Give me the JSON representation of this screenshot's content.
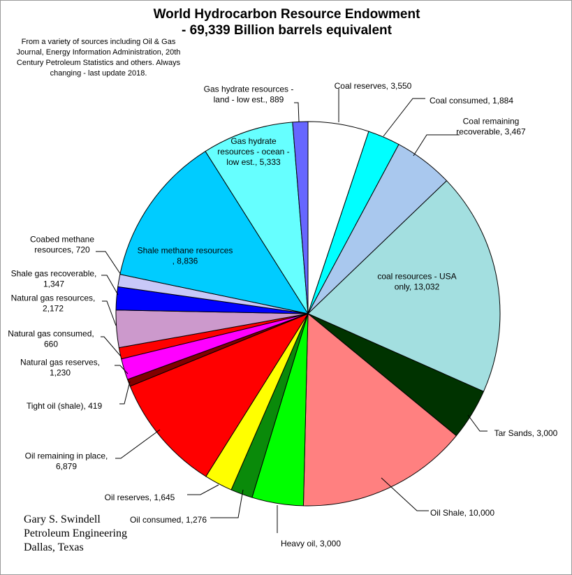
{
  "chart_data": {
    "type": "pie",
    "title": "World Hydrocarbon Resource Endowment",
    "subtitle": "- 69,339 Billion barrels equivalent",
    "note": "From a variety of sources including Oil & Gas Journal, Energy Information Administration, 20th Century Petroleum Statistics and others.  Always changing - last update 2018.",
    "credit": [
      "Gary S. Swindell",
      "Petroleum Engineering",
      "Dallas, Texas"
    ],
    "legend": "none",
    "slices": [
      {
        "label": [
          "Coal reserves,  3,550"
        ],
        "value": 3550,
        "color": "#ffffff"
      },
      {
        "label": [
          "Coal consumed,  1,884"
        ],
        "value": 1884,
        "color": "#00ffff"
      },
      {
        "label": [
          "Coal remaining",
          "recoverable,  3,467"
        ],
        "value": 3467,
        "color": "#a9c8ee"
      },
      {
        "label": [
          "coal resources - USA",
          "only,  13,032"
        ],
        "value": 13032,
        "color": "#a3dfe0"
      },
      {
        "label": [
          "Tar Sands,  3,000"
        ],
        "value": 3000,
        "color": "#003300"
      },
      {
        "label": [
          "Oil Shale,  10,000"
        ],
        "value": 10000,
        "color": "#ff8080"
      },
      {
        "label": [
          "Heavy oil,  3,000"
        ],
        "value": 3000,
        "color": "#00ff00"
      },
      {
        "label": [
          "Oil consumed,  1,276"
        ],
        "value": 1276,
        "color": "#0a8a0a"
      },
      {
        "label": [
          "Oil reserves,  1,645"
        ],
        "value": 1645,
        "color": "#ffff00"
      },
      {
        "label": [
          "Oil remaining in place,",
          "6,879"
        ],
        "value": 6879,
        "color": "#ff0000"
      },
      {
        "label": [
          "Tight oil (shale),  419"
        ],
        "value": 419,
        "color": "#800000"
      },
      {
        "label": [
          "Natural gas reserves,",
          "1,230"
        ],
        "value": 1230,
        "color": "#ff00ff"
      },
      {
        "label": [
          "Natural gas consumed,",
          "660"
        ],
        "value": 660,
        "color": "#ff0000"
      },
      {
        "label": [
          "Natural gas resources,",
          "2,172"
        ],
        "value": 2172,
        "color": "#cc99cc"
      },
      {
        "label": [
          "Shale gas recoverable,",
          "1,347"
        ],
        "value": 1347,
        "color": "#0000ff"
      },
      {
        "label": [
          "Coabed methane",
          "resources,  720"
        ],
        "value": 720,
        "color": "#c8c8f8"
      },
      {
        "label": [
          "Shale methane resources",
          ",  8,836"
        ],
        "value": 8836,
        "color": "#00ccff"
      },
      {
        "label": [
          "Gas hydrate",
          "resources - ocean -",
          "low est.,  5,333"
        ],
        "value": 5333,
        "color": "#66ffff"
      },
      {
        "label": [
          "Gas hydrate resources -",
          "land - low est.,  889"
        ],
        "value": 889,
        "color": "#6666ff"
      }
    ]
  }
}
